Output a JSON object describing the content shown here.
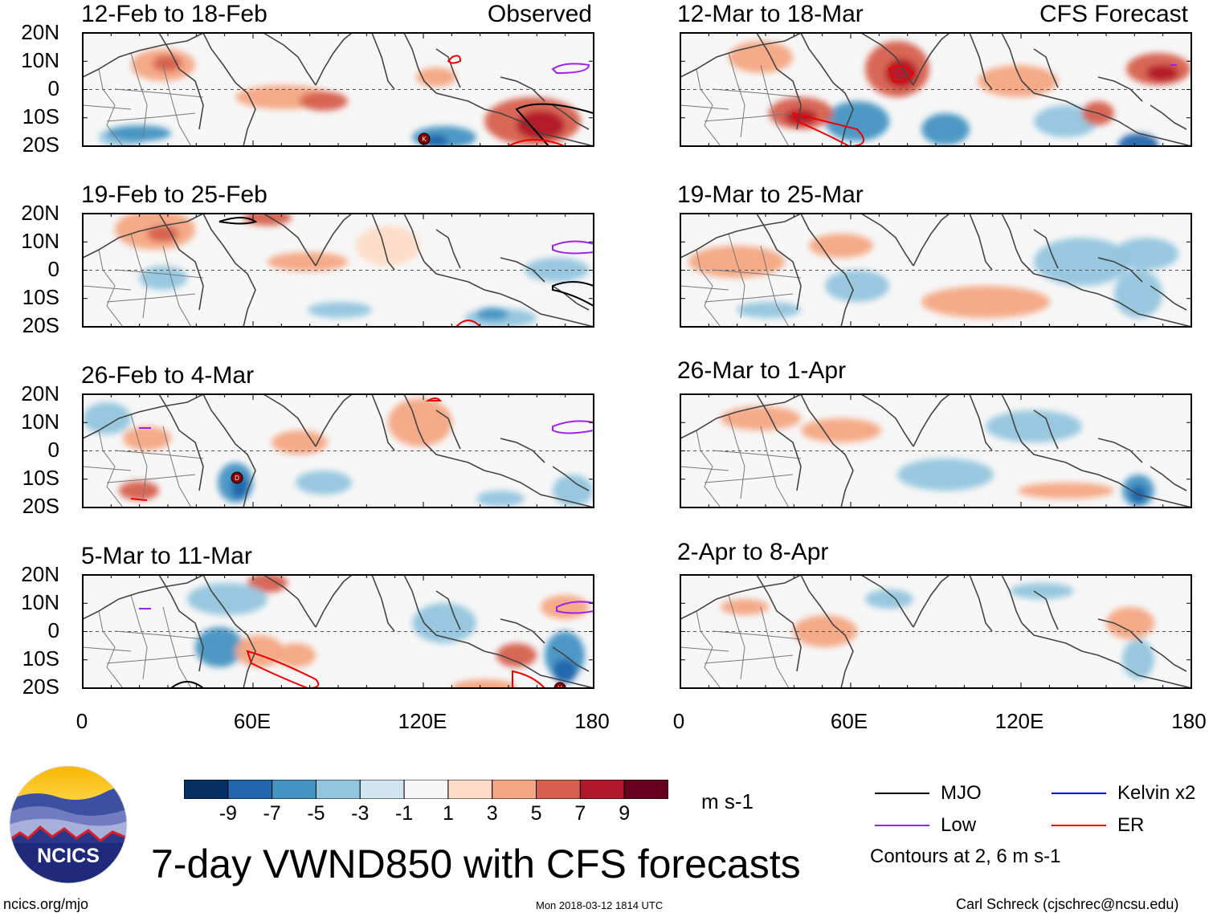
{
  "panels": [
    {
      "id": "p1",
      "title": "12-Feb to 18-Feb",
      "label_right": "Observed"
    },
    {
      "id": "p2",
      "title": "19-Feb to 25-Feb",
      "label_right": ""
    },
    {
      "id": "p3",
      "title": "26-Feb to 4-Mar",
      "label_right": ""
    },
    {
      "id": "p4",
      "title": "5-Mar to 11-Mar",
      "label_right": ""
    },
    {
      "id": "p5",
      "title": "12-Mar to 18-Mar",
      "label_right": "CFS Forecast"
    },
    {
      "id": "p6",
      "title": "19-Mar to 25-Mar",
      "label_right": ""
    },
    {
      "id": "p7",
      "title": "26-Mar to 1-Apr",
      "label_right": ""
    },
    {
      "id": "p8",
      "title": "2-Apr to 8-Apr",
      "label_right": ""
    }
  ],
  "y_axis_labels": [
    "20N",
    "10N",
    "0",
    "10S",
    "20S"
  ],
  "x_axis_labels": [
    "0",
    "60E",
    "120E",
    "180"
  ],
  "storm_markers": [
    "K",
    "D",
    "H"
  ],
  "colorbar": {
    "ticks": [
      "-9",
      "-7",
      "-5",
      "-3",
      "-1",
      "1",
      "3",
      "5",
      "7",
      "9"
    ],
    "units": "m s-1",
    "colors": [
      "#053061",
      "#2166ac",
      "#4393c3",
      "#92c5de",
      "#d1e5f0",
      "#f7f7f7",
      "#fddbc7",
      "#f4a582",
      "#d6604d",
      "#b2182b",
      "#67001f"
    ]
  },
  "legend": {
    "mjo": "MJO",
    "kelvin": "Kelvin x2",
    "low": "Low",
    "er": "ER",
    "contours_note": "Contours at 2, 6 m s-1",
    "colors": {
      "mjo": "#000000",
      "kelvin": "#0000ee",
      "low": "#a020f0",
      "er": "#ee0000"
    }
  },
  "logo_text": "NCICS",
  "main_title": "7-day VWND850 with CFS forecasts",
  "footer": {
    "left": "ncics.org/mjo",
    "center": "Mon 2018-03-12 1814 UTC",
    "right": "Carl Schreck (cjschrec@ncsu.edu)"
  }
}
